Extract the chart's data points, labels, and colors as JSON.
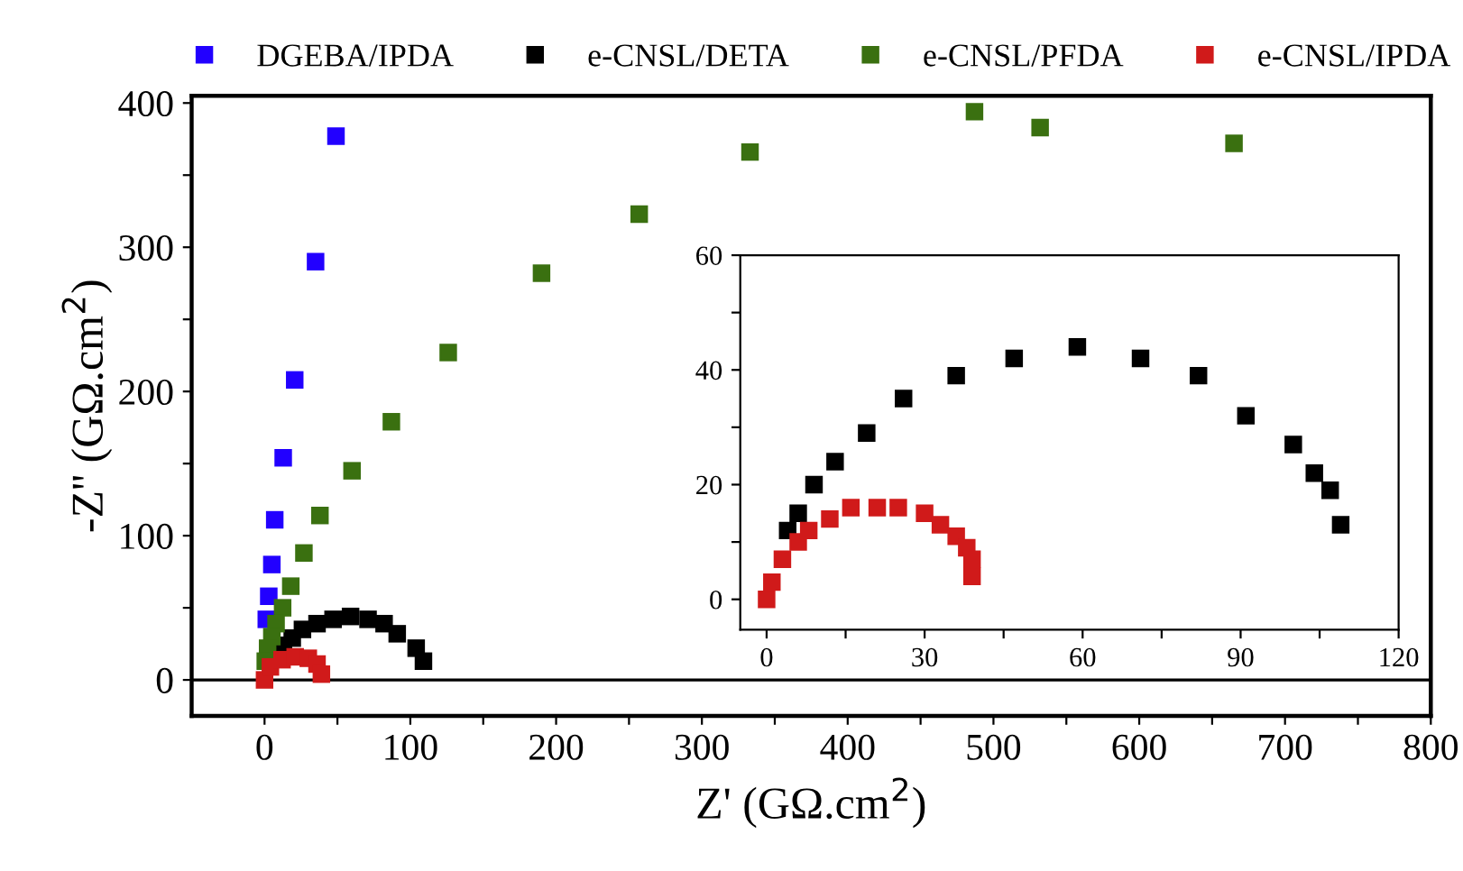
{
  "chart_data": [
    {
      "type": "scatter",
      "xlabel": "Z' (GΩ.cm$^{2}$)",
      "ylabel": "-Z'' (GΩ.cm$^{2}$)",
      "xlim": [
        -50,
        800
      ],
      "ylim": [
        -25,
        405
      ],
      "xticks": [
        0,
        {
          "value": 50,
          "label": null
        },
        100,
        {
          "value": 150,
          "label": null
        },
        200,
        {
          "value": 250,
          "label": null
        },
        300,
        {
          "value": 350,
          "label": null
        },
        400,
        {
          "value": 450,
          "label": null
        },
        500,
        {
          "value": 550,
          "label": null
        },
        600,
        {
          "value": 650,
          "label": null
        },
        700,
        {
          "value": 750,
          "label": null
        },
        800
      ],
      "yticks": [
        0,
        {
          "value": 50,
          "label": null
        },
        100,
        {
          "value": 150,
          "label": null
        },
        200,
        {
          "value": 250,
          "label": null
        },
        300,
        {
          "value": 350,
          "label": null
        },
        400
      ],
      "marker": "square",
      "legend": "top",
      "grid": false,
      "ref_lines": [
        {
          "axis": "y",
          "value": 0,
          "color": "#000000"
        }
      ],
      "series": [
        {
          "name": "DGEBA/IPDA",
          "color": "#2200ff",
          "x": [
            49,
            35,
            20.7,
            12.8,
            7.0,
            5.0,
            2.9,
            1.2
          ],
          "values": [
            377,
            290,
            208,
            154,
            111,
            80,
            58,
            42
          ]
        },
        {
          "name": "e-CNSL/DETA",
          "color": "#000000",
          "x": [
            109,
            104,
            91,
            82,
            71,
            59,
            47,
            36,
            26,
            19,
            13
          ],
          "values": [
            13,
            22,
            32,
            39,
            42,
            44,
            42,
            39,
            35,
            29,
            24
          ]
        },
        {
          "name": "e-CNSL/PFDA",
          "color": "#3a7010",
          "x": [
            665,
            532,
            487,
            333,
            257,
            190,
            126,
            87,
            60,
            38,
            27,
            18,
            12.4,
            7.9,
            5.0,
            2.1,
            0.5
          ],
          "values": [
            372,
            383,
            394,
            366,
            323,
            282,
            227,
            179,
            145,
            114,
            88,
            65,
            50,
            39,
            30,
            22,
            13
          ]
        },
        {
          "name": "e-CNSL/IPDA",
          "color": "#d01a1a",
          "x": [
            0,
            4,
            12,
            21,
            30,
            36,
            39
          ],
          "values": [
            0,
            9,
            14,
            16,
            15,
            11,
            4
          ]
        }
      ]
    },
    {
      "type": "scatter",
      "xlim": [
        -5,
        120
      ],
      "ylim": [
        -5.3,
        60
      ],
      "xticks": [
        0,
        {
          "value": 15,
          "label": null
        },
        30,
        {
          "value": 45,
          "label": null
        },
        60,
        {
          "value": 75,
          "label": null
        },
        90,
        {
          "value": 105,
          "label": null
        },
        120
      ],
      "yticks": [
        0,
        {
          "value": 10,
          "label": null
        },
        20,
        {
          "value": 30,
          "label": null
        },
        40,
        {
          "value": 50,
          "label": null
        },
        60
      ],
      "marker": "square",
      "grid": false,
      "series": [
        {
          "color": "#000000",
          "x": [
            109,
            107,
            104,
            100,
            91,
            82,
            71,
            59,
            47,
            36,
            26,
            19,
            13,
            9,
            6,
            4
          ],
          "values": [
            13,
            19,
            22,
            27,
            32,
            39,
            42,
            44,
            42,
            39,
            35,
            29,
            24,
            20,
            15,
            12
          ]
        },
        {
          "color": "#d01a1a",
          "x": [
            0,
            1,
            3,
            6,
            8,
            12,
            16,
            21,
            25,
            30,
            33,
            36,
            38,
            39,
            39
          ],
          "values": [
            0,
            3,
            7,
            10,
            12,
            14,
            16,
            16,
            16,
            15,
            13,
            11,
            9,
            7,
            4
          ]
        }
      ]
    }
  ]
}
